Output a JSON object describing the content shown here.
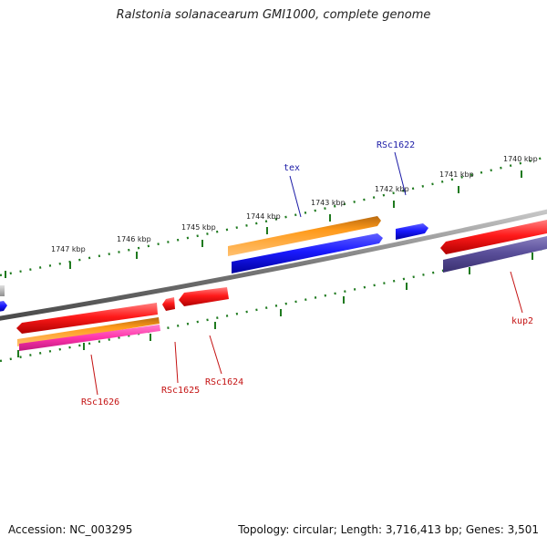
{
  "title": "Ralstonia solanacearum GMI1000, complete genome",
  "footer": {
    "accession_label": "Accession:",
    "accession": "NC_003295",
    "topology_label": "Topology:",
    "topology": "circular",
    "length_label": "Length:",
    "length": "3,716,413 bp",
    "genes_label": "Genes:",
    "genes": "3,501"
  },
  "colors": {
    "backbone": "#808080",
    "tick": "#1f7a1f",
    "label_plus": "#1a1aa6",
    "label_minus": "#c41212",
    "red": "#ff1a1a",
    "orange": "#ff9a1a",
    "blue": "#1a1aff",
    "magenta": "#ff33aa",
    "purple": "#5a4f9a",
    "gray": "#b0b0b0"
  },
  "kbp_labels": [
    "1740 kbp",
    "1741 kbp",
    "1742 kbp",
    "1743 kbp",
    "1744 kbp",
    "1745 kbp",
    "1746 kbp",
    "1747 kbp"
  ],
  "gene_labels": {
    "tex": "tex",
    "rsc1622": "RSc1622",
    "kup2": "kup2",
    "rsc1624": "RSc1624",
    "rsc1625": "RSc1625",
    "rsc1626": "RSc1626"
  }
}
